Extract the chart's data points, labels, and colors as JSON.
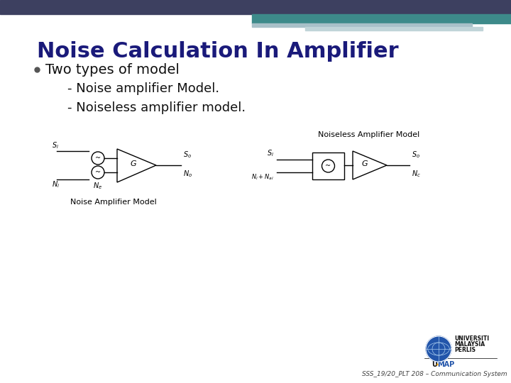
{
  "title": "Noise Calculation In Amplifier",
  "title_color": "#1a1a7a",
  "title_fontsize": 22,
  "bg_color": "#ffffff",
  "header_bar1_color": "#3d4060",
  "header_bar2_color": "#3d8a8a",
  "header_bar3_color": "#a8c0c8",
  "header_bar4_color": "#c0d4d8",
  "bullet_text": "Two types of model",
  "sub1": "- Noise amplifier Model.",
  "sub2": "- Noiseless amplifier model.",
  "text_color": "#111111",
  "diagram_label1": "Noise Amplifier Model",
  "diagram_label2": "Noiseless Amplifier Model",
  "footer_text": "SSS_19/20_PLT 208 – Communication System",
  "footer_color": "#444444",
  "univ1": "UNIVERSITI",
  "univ2": "MALAYSIA",
  "univ3": "PERLIS"
}
